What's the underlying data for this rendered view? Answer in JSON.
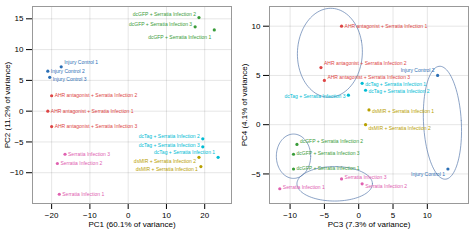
{
  "chart_data": [
    {
      "type": "scatter",
      "xlabel": "PC1 (60.1% of variance)",
      "ylabel": "PC2 (11.2% of variance)",
      "xlim": [
        -25,
        27
      ],
      "ylim": [
        -15,
        17
      ],
      "xticks": [
        -20,
        -10,
        0,
        10,
        20
      ],
      "yticks": [
        -10,
        -5,
        0,
        5,
        10,
        15
      ],
      "grid": true,
      "points": [
        {
          "x": 18.5,
          "y": 15.2,
          "color": "#3a9c3a",
          "label": "dcGFP + Serratia Infection 2"
        },
        {
          "x": 17.5,
          "y": 13.7,
          "color": "#3a9c3a",
          "label": "dcGFP + Serratia Infection 3"
        },
        {
          "x": 22.5,
          "y": 13.2,
          "color": "#3a9c3a",
          "label": "dcGFP + Serratia Infection 1"
        },
        {
          "x": -17.5,
          "y": 7.2,
          "color": "#2b6fb5",
          "label": "Injury Control 1"
        },
        {
          "x": -21.0,
          "y": 6.5,
          "color": "#2b6fb5",
          "label": "Injury Control 2"
        },
        {
          "x": -20.5,
          "y": 5.5,
          "color": "#2b6fb5",
          "label": "Injury Control 3"
        },
        {
          "x": -20.0,
          "y": 2.5,
          "color": "#d44",
          "label": "AHR antagonist + Serratia Infection 2"
        },
        {
          "x": -21.0,
          "y": 0.0,
          "color": "#d44",
          "label": "AHR antagonist + Serratia Infection 1"
        },
        {
          "x": -20.0,
          "y": -2.5,
          "color": "#d44",
          "label": "AHR antagonist + Serratia Infection 3"
        },
        {
          "x": 19.5,
          "y": -4.5,
          "color": "#00bcd4",
          "label": "dcTag + Serratia Infection 2"
        },
        {
          "x": 19.5,
          "y": -5.8,
          "color": "#00bcd4",
          "label": "dcTag + Serratia Infection 3"
        },
        {
          "x": 23.5,
          "y": -7.5,
          "color": "#00bcd4",
          "label": "dcTag + Serratia Infection 1"
        },
        {
          "x": 18.5,
          "y": -7.5,
          "color": "#b8a000",
          "label": "dsMIR + Serratia Infection 2"
        },
        {
          "x": 19.0,
          "y": -9.0,
          "color": "#b8a000",
          "label": "dsMIR + Serratia Infection 1"
        },
        {
          "x": -16.5,
          "y": -7.0,
          "color": "#e060b0",
          "label": "Serratia Infection 3"
        },
        {
          "x": -18.5,
          "y": -8.5,
          "color": "#e060b0",
          "label": "Serratia Infection 2"
        },
        {
          "x": -18.0,
          "y": -13.5,
          "color": "#e060b0",
          "label": "Serratia Infection 1"
        }
      ]
    },
    {
      "type": "scatter",
      "xlabel": "PC3 (7.3% of variance)",
      "ylabel": "PC4 (4.1% of variance)",
      "xlim": [
        -13,
        16
      ],
      "ylim": [
        -8,
        12
      ],
      "xticks": [
        -10,
        -5,
        0,
        5,
        10
      ],
      "yticks": [
        -5,
        0,
        5,
        10
      ],
      "grid": true,
      "points": [
        {
          "x": -2.5,
          "y": 10.0,
          "color": "#d44",
          "label": "AHR antagonist + Serratia Infection 1"
        },
        {
          "x": -5.5,
          "y": 5.8,
          "color": "#d44",
          "label": "AHR antagonist + Serratia Infection 2"
        },
        {
          "x": -5.0,
          "y": 4.5,
          "color": "#d44",
          "label": "AHR antagonist + Serratia Infection 3"
        },
        {
          "x": 0.5,
          "y": 4.2,
          "color": "#00bcd4",
          "label": "dcTag + Serratia Infection 1"
        },
        {
          "x": 1.0,
          "y": 3.5,
          "color": "#00bcd4",
          "label": "dcTag + Serratia Infection 2"
        },
        {
          "x": -1.5,
          "y": 3.0,
          "color": "#00bcd4",
          "label": "dcTag + Serratia Infection 3"
        },
        {
          "x": 1.5,
          "y": 1.5,
          "color": "#b8a000",
          "label": "dsMIR + Serratia Infection 1"
        },
        {
          "x": 1.0,
          "y": 0.0,
          "color": "#b8a000",
          "label": "dsMIR + Serratia Infection 2"
        },
        {
          "x": 11.5,
          "y": 5.0,
          "color": "#2b6fb5",
          "label": "Injury Control 2"
        },
        {
          "x": 13.0,
          "y": -4.5,
          "color": "#2b6fb5",
          "label": "Injury Control 1"
        },
        {
          "x": -9.0,
          "y": -2.0,
          "color": "#3a9c3a",
          "label": "dcGFP + Serratia Infection 2"
        },
        {
          "x": -9.5,
          "y": -3.0,
          "color": "#3a9c3a",
          "label": "dcGFP + Serratia Infection 3"
        },
        {
          "x": -9.5,
          "y": -4.5,
          "color": "#3a9c3a",
          "label": "dcGFP + Serratia Infection 1"
        },
        {
          "x": -2.5,
          "y": -5.5,
          "color": "#e060b0",
          "label": "Serratia Infection 3"
        },
        {
          "x": -11.5,
          "y": -6.5,
          "color": "#e060b0",
          "label": "Serratia Infection 1"
        },
        {
          "x": 0.5,
          "y": -6.0,
          "color": "#e060b0",
          "label": "Serratia Infection 2"
        }
      ],
      "ellipses": [
        {
          "cx": -4.2,
          "cy": 7.3,
          "width": 9.5,
          "height": 9.0,
          "angle": 15,
          "color": "#5577aa"
        },
        {
          "cx": 12.2,
          "cy": 0.2,
          "width": 5.5,
          "height": 11.5,
          "angle": 5,
          "color": "#5577aa"
        },
        {
          "cx": -9.5,
          "cy": -3.2,
          "width": 5.0,
          "height": 4.5,
          "angle": 0,
          "color": "#5577aa"
        },
        {
          "cx": -3.5,
          "cy": -6.0,
          "width": 11.0,
          "height": 3.5,
          "angle": 0,
          "color": "#5577aa"
        }
      ]
    }
  ]
}
